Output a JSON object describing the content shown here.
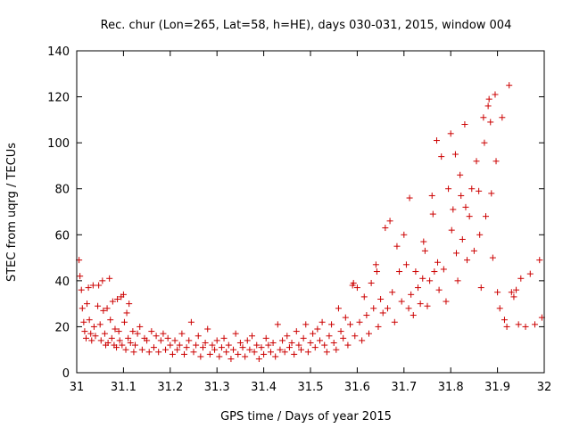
{
  "chart_data": {
    "type": "scatter",
    "title": "Rec. chur (Lon=265, Lat=58, h=HE), days 030-031, 2015, window 004",
    "xlabel": "GPS time / Days of year 2015",
    "ylabel": "STEC from uqrg / TECUs",
    "xlim": [
      31,
      32
    ],
    "ylim": [
      0,
      140
    ],
    "x_ticks": [
      "31",
      "31.1",
      "31.2",
      "31.3",
      "31.4",
      "31.5",
      "31.6",
      "31.7",
      "31.8",
      "31.9",
      "32"
    ],
    "y_ticks": [
      "0",
      "20",
      "40",
      "60",
      "80",
      "100",
      "120",
      "140"
    ],
    "grid": false,
    "legend": "none",
    "marker": "+",
    "color": "#cc0000",
    "points": [
      [
        31.005,
        49
      ],
      [
        31.007,
        42
      ],
      [
        31.01,
        36
      ],
      [
        31.012,
        28
      ],
      [
        31.015,
        22
      ],
      [
        31.017,
        18
      ],
      [
        31.02,
        15
      ],
      [
        31.022,
        30
      ],
      [
        31.025,
        37
      ],
      [
        31.027,
        23
      ],
      [
        31.03,
        17
      ],
      [
        31.032,
        14
      ],
      [
        31.035,
        38
      ],
      [
        31.037,
        20
      ],
      [
        31.04,
        16
      ],
      [
        31.045,
        29
      ],
      [
        31.047,
        38
      ],
      [
        31.05,
        21
      ],
      [
        31.052,
        14
      ],
      [
        31.055,
        40
      ],
      [
        31.057,
        27
      ],
      [
        31.06,
        17
      ],
      [
        31.062,
        12
      ],
      [
        31.065,
        28
      ],
      [
        31.067,
        13
      ],
      [
        31.07,
        41
      ],
      [
        31.072,
        23
      ],
      [
        31.075,
        15
      ],
      [
        31.077,
        31
      ],
      [
        31.08,
        12
      ],
      [
        31.082,
        19
      ],
      [
        31.085,
        11
      ],
      [
        31.087,
        32
      ],
      [
        31.09,
        18
      ],
      [
        31.092,
        14
      ],
      [
        31.095,
        33
      ],
      [
        31.097,
        12
      ],
      [
        31.1,
        34
      ],
      [
        31.102,
        22
      ],
      [
        31.105,
        10
      ],
      [
        31.107,
        26
      ],
      [
        31.11,
        15
      ],
      [
        31.112,
        30
      ],
      [
        31.115,
        13
      ],
      [
        31.12,
        18
      ],
      [
        31.122,
        9
      ],
      [
        31.125,
        12
      ],
      [
        31.13,
        17
      ],
      [
        31.135,
        20
      ],
      [
        31.14,
        10
      ],
      [
        31.145,
        15
      ],
      [
        31.15,
        14
      ],
      [
        31.155,
        9
      ],
      [
        31.16,
        18
      ],
      [
        31.165,
        11
      ],
      [
        31.17,
        16
      ],
      [
        31.175,
        9
      ],
      [
        31.18,
        14
      ],
      [
        31.185,
        17
      ],
      [
        31.19,
        10
      ],
      [
        31.195,
        15
      ],
      [
        31.2,
        12
      ],
      [
        31.205,
        8
      ],
      [
        31.21,
        14
      ],
      [
        31.215,
        10
      ],
      [
        31.22,
        12
      ],
      [
        31.225,
        17
      ],
      [
        31.23,
        8
      ],
      [
        31.235,
        11
      ],
      [
        31.24,
        14
      ],
      [
        31.245,
        22
      ],
      [
        31.25,
        9
      ],
      [
        31.255,
        12
      ],
      [
        31.26,
        16
      ],
      [
        31.265,
        7
      ],
      [
        31.27,
        11
      ],
      [
        31.275,
        13
      ],
      [
        31.28,
        19
      ],
      [
        31.285,
        8
      ],
      [
        31.29,
        12
      ],
      [
        31.295,
        10
      ],
      [
        31.3,
        14
      ],
      [
        31.305,
        7
      ],
      [
        31.31,
        11
      ],
      [
        31.315,
        15
      ],
      [
        31.32,
        9
      ],
      [
        31.325,
        12
      ],
      [
        31.33,
        6
      ],
      [
        31.335,
        10
      ],
      [
        31.34,
        17
      ],
      [
        31.345,
        8
      ],
      [
        31.35,
        13
      ],
      [
        31.355,
        11
      ],
      [
        31.36,
        7
      ],
      [
        31.365,
        14
      ],
      [
        31.37,
        10
      ],
      [
        31.375,
        16
      ],
      [
        31.38,
        9
      ],
      [
        31.385,
        12
      ],
      [
        31.39,
        6
      ],
      [
        31.395,
        11
      ],
      [
        31.4,
        8
      ],
      [
        31.405,
        15
      ],
      [
        31.41,
        12
      ],
      [
        31.415,
        9
      ],
      [
        31.42,
        13
      ],
      [
        31.425,
        7
      ],
      [
        31.43,
        21
      ],
      [
        31.435,
        10
      ],
      [
        31.44,
        14
      ],
      [
        31.445,
        9
      ],
      [
        31.45,
        16
      ],
      [
        31.455,
        11
      ],
      [
        31.46,
        13
      ],
      [
        31.465,
        8
      ],
      [
        31.47,
        18
      ],
      [
        31.475,
        12
      ],
      [
        31.48,
        10
      ],
      [
        31.485,
        15
      ],
      [
        31.49,
        21
      ],
      [
        31.495,
        9
      ],
      [
        31.5,
        13
      ],
      [
        31.505,
        17
      ],
      [
        31.51,
        11
      ],
      [
        31.515,
        19
      ],
      [
        31.52,
        14
      ],
      [
        31.525,
        22
      ],
      [
        31.53,
        12
      ],
      [
        31.535,
        9
      ],
      [
        31.54,
        16
      ],
      [
        31.545,
        21
      ],
      [
        31.55,
        13
      ],
      [
        31.555,
        10
      ],
      [
        31.56,
        28
      ],
      [
        31.565,
        18
      ],
      [
        31.57,
        15
      ],
      [
        31.575,
        24
      ],
      [
        31.58,
        12
      ],
      [
        31.585,
        21
      ],
      [
        31.59,
        38
      ],
      [
        31.592,
        39
      ],
      [
        31.595,
        16
      ],
      [
        31.6,
        37
      ],
      [
        31.605,
        22
      ],
      [
        31.61,
        14
      ],
      [
        31.615,
        33
      ],
      [
        31.62,
        25
      ],
      [
        31.625,
        17
      ],
      [
        31.63,
        39
      ],
      [
        31.635,
        28
      ],
      [
        31.64,
        47
      ],
      [
        31.642,
        44
      ],
      [
        31.645,
        20
      ],
      [
        31.65,
        32
      ],
      [
        31.655,
        26
      ],
      [
        31.66,
        63
      ],
      [
        31.665,
        28
      ],
      [
        31.67,
        66
      ],
      [
        31.675,
        35
      ],
      [
        31.68,
        22
      ],
      [
        31.685,
        55
      ],
      [
        31.69,
        44
      ],
      [
        31.695,
        31
      ],
      [
        31.7,
        60
      ],
      [
        31.705,
        47
      ],
      [
        31.71,
        28
      ],
      [
        31.712,
        76
      ],
      [
        31.715,
        34
      ],
      [
        31.72,
        25
      ],
      [
        31.725,
        44
      ],
      [
        31.73,
        37
      ],
      [
        31.735,
        30
      ],
      [
        31.74,
        41
      ],
      [
        31.742,
        57
      ],
      [
        31.745,
        53
      ],
      [
        31.75,
        29
      ],
      [
        31.755,
        40
      ],
      [
        31.76,
        77
      ],
      [
        31.762,
        69
      ],
      [
        31.765,
        44
      ],
      [
        31.77,
        101
      ],
      [
        31.772,
        48
      ],
      [
        31.775,
        36
      ],
      [
        31.78,
        94
      ],
      [
        31.785,
        45
      ],
      [
        31.79,
        31
      ],
      [
        31.795,
        80
      ],
      [
        31.8,
        104
      ],
      [
        31.802,
        62
      ],
      [
        31.805,
        71
      ],
      [
        31.81,
        95
      ],
      [
        31.812,
        52
      ],
      [
        31.815,
        40
      ],
      [
        31.82,
        86
      ],
      [
        31.822,
        77
      ],
      [
        31.825,
        58
      ],
      [
        31.83,
        108
      ],
      [
        31.832,
        72
      ],
      [
        31.835,
        49
      ],
      [
        31.84,
        68
      ],
      [
        31.845,
        80
      ],
      [
        31.85,
        53
      ],
      [
        31.855,
        92
      ],
      [
        31.86,
        79
      ],
      [
        31.862,
        60
      ],
      [
        31.865,
        37
      ],
      [
        31.87,
        111
      ],
      [
        31.872,
        100
      ],
      [
        31.875,
        68
      ],
      [
        31.88,
        116
      ],
      [
        31.882,
        119
      ],
      [
        31.885,
        109
      ],
      [
        31.887,
        78
      ],
      [
        31.89,
        50
      ],
      [
        31.895,
        121
      ],
      [
        31.897,
        92
      ],
      [
        31.9,
        35
      ],
      [
        31.905,
        28
      ],
      [
        31.91,
        111
      ],
      [
        31.915,
        23
      ],
      [
        31.92,
        20
      ],
      [
        31.925,
        125
      ],
      [
        31.93,
        35
      ],
      [
        31.935,
        33
      ],
      [
        31.94,
        36
      ],
      [
        31.945,
        21
      ],
      [
        31.95,
        41
      ],
      [
        31.96,
        20
      ],
      [
        31.97,
        43
      ],
      [
        31.98,
        21
      ],
      [
        31.99,
        49
      ],
      [
        31.995,
        24
      ]
    ]
  }
}
